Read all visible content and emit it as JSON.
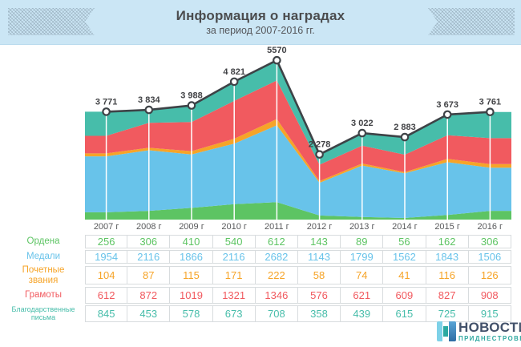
{
  "header": {
    "title": "Информация о наградах",
    "subtitle": "за период 2007-2016 гг."
  },
  "chart_data": {
    "type": "area",
    "stacked": true,
    "title": "Информация о наградах",
    "subtitle": "за период 2007-2016 гг.",
    "categories": [
      "2007 г",
      "2008 г",
      "2009 г",
      "2010 г",
      "2011 г",
      "2012 г",
      "2013 г",
      "2014 г",
      "2015 г",
      "2016 г"
    ],
    "series": [
      {
        "name": "Ордена",
        "color": "#5dc463",
        "values": [
          256,
          306,
          410,
          540,
          612,
          143,
          89,
          56,
          162,
          306
        ]
      },
      {
        "name": "Медали",
        "color": "#68c3ea",
        "values": [
          1954,
          2116,
          1866,
          2116,
          2682,
          1143,
          1799,
          1562,
          1843,
          1506
        ]
      },
      {
        "name": "Почетные звания",
        "color": "#f6a428",
        "values": [
          104,
          87,
          115,
          171,
          222,
          58,
          74,
          41,
          116,
          126
        ]
      },
      {
        "name": "Грамоты",
        "color": "#f15a5f",
        "values": [
          612,
          872,
          1019,
          1321,
          1346,
          576,
          621,
          609,
          827,
          908
        ]
      },
      {
        "name": "Благодарственные письма",
        "color": "#47bdaa",
        "values": [
          845,
          453,
          578,
          673,
          708,
          358,
          439,
          615,
          725,
          915
        ]
      }
    ],
    "totals": [
      3771,
      3834,
      3988,
      4821,
      5570,
      2278,
      3022,
      2883,
      3673,
      3761
    ],
    "total_labels": [
      "3 771",
      "3 834",
      "3 988",
      "4 821",
      "5570",
      "2 278",
      "3 022",
      "2 883",
      "3 673",
      "3 761"
    ],
    "line_color": "#3e4347",
    "label_color": "#414245",
    "gridline_color": "#ffffff",
    "ylim": [
      0,
      5570
    ],
    "legend_position": "table-below-chart"
  },
  "logo": {
    "line1": "НОВОСТИ",
    "line2": "ПРИДНЕСТРОВЬЯ",
    "text_color": "#43526b",
    "accent_color": "#2fa8a0"
  }
}
